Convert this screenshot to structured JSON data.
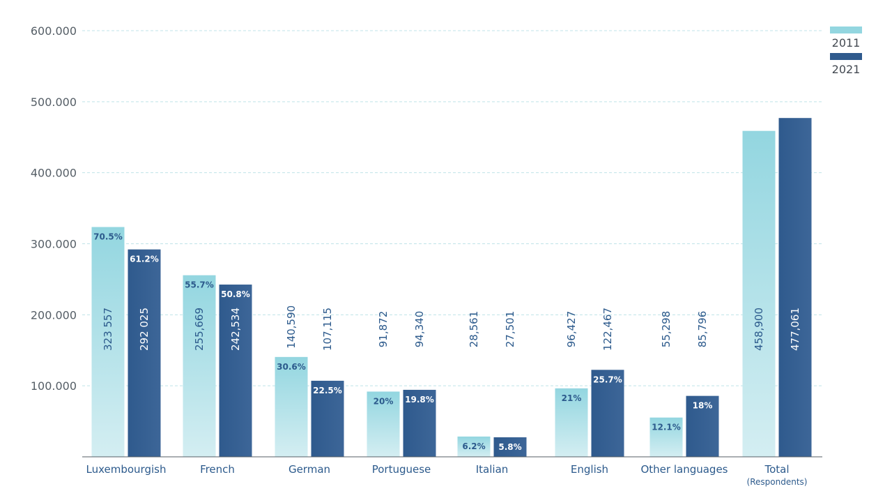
{
  "chart_data": {
    "type": "bar",
    "categories": [
      "Luxembourgish",
      "French",
      "German",
      "Portuguese",
      "Italian",
      "English",
      "Other languages",
      "Total"
    ],
    "category_sublabels": [
      "",
      "",
      "",
      "",
      "",
      "",
      "",
      "(Respondents)"
    ],
    "series": [
      {
        "name": "2011",
        "values": [
          323557,
          255669,
          140590,
          91872,
          28561,
          96427,
          55298,
          458900
        ],
        "value_labels": [
          "323 557",
          "255,669",
          "140,590",
          "91,872",
          "28,561",
          "96,427",
          "55,298",
          "458,900"
        ],
        "percent_labels": [
          "70.5%",
          "55.7%",
          "30.6%",
          "20%",
          "6.2%",
          "21%",
          "12.1%",
          ""
        ]
      },
      {
        "name": "2021",
        "values": [
          292025,
          242534,
          107115,
          94340,
          27501,
          122467,
          85796,
          477061
        ],
        "value_labels": [
          "292 025",
          "242,534",
          "107,115",
          "94,340",
          "27,501",
          "122,467",
          "85,796",
          "477,061"
        ],
        "percent_labels": [
          "61.2%",
          "50.8%",
          "22.5%",
          "19.8%",
          "5.8%",
          "25.7%",
          "18%",
          ""
        ]
      }
    ],
    "y_ticks": [
      100000,
      200000,
      300000,
      400000,
      500000,
      600000
    ],
    "y_tick_labels": [
      "100.000",
      "200.000",
      "300.000",
      "400.000",
      "500.000",
      "600.000"
    ],
    "ylim": [
      0,
      600000
    ],
    "grid": true,
    "legend_position": "top-right",
    "title": "",
    "xlabel": "",
    "ylabel": ""
  },
  "colors": {
    "series_2011_top": "#93d6e0",
    "series_2011_bottom": "#d4eef2",
    "series_2021": "#2f5a8d",
    "series_2021_light": "#3d6698",
    "grid": "#bfe3e8",
    "axis": "#555e66",
    "category_text": "#2c5a8c",
    "pct_on_light": "#2c5a8c",
    "pct_on_dark": "#ffffff"
  }
}
